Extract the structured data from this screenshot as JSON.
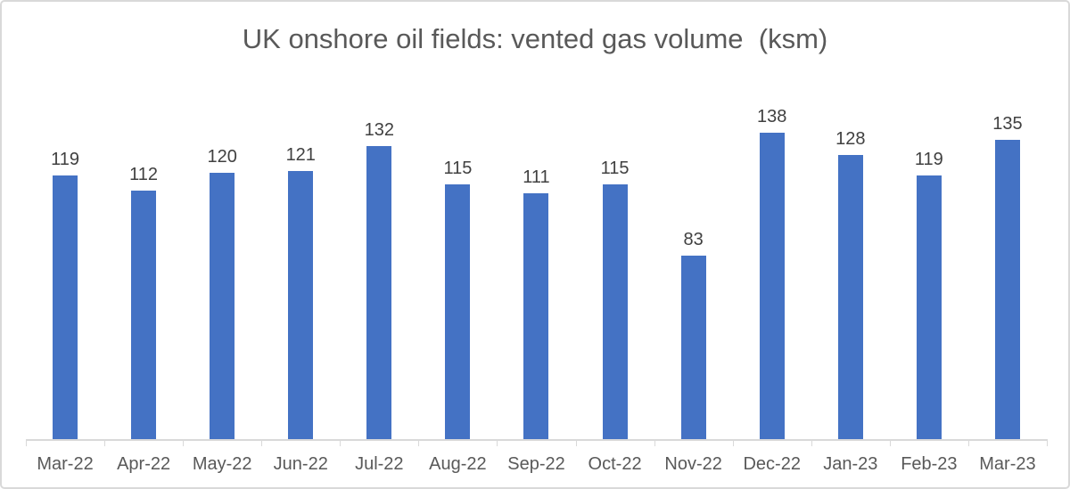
{
  "chart_data": {
    "type": "bar",
    "title": "UK onshore oil fields: vented gas volume  (ksm)",
    "categories": [
      "Mar-22",
      "Apr-22",
      "May-22",
      "Jun-22",
      "Jul-22",
      "Aug-22",
      "Sep-22",
      "Oct-22",
      "Nov-22",
      "Dec-22",
      "Jan-23",
      "Feb-23",
      "Mar-23"
    ],
    "values": [
      119,
      112,
      120,
      121,
      132,
      115,
      111,
      115,
      83,
      138,
      128,
      119,
      135
    ],
    "xlabel": "",
    "ylabel": "",
    "ylim": [
      0,
      160
    ],
    "grid": false,
    "legend": false,
    "data_labels": true,
    "colors": {
      "bar": "#4472C4",
      "title": "#595959",
      "data_label": "#404040",
      "axis_label": "#595959",
      "axis_line": "#D9D9D9"
    }
  }
}
